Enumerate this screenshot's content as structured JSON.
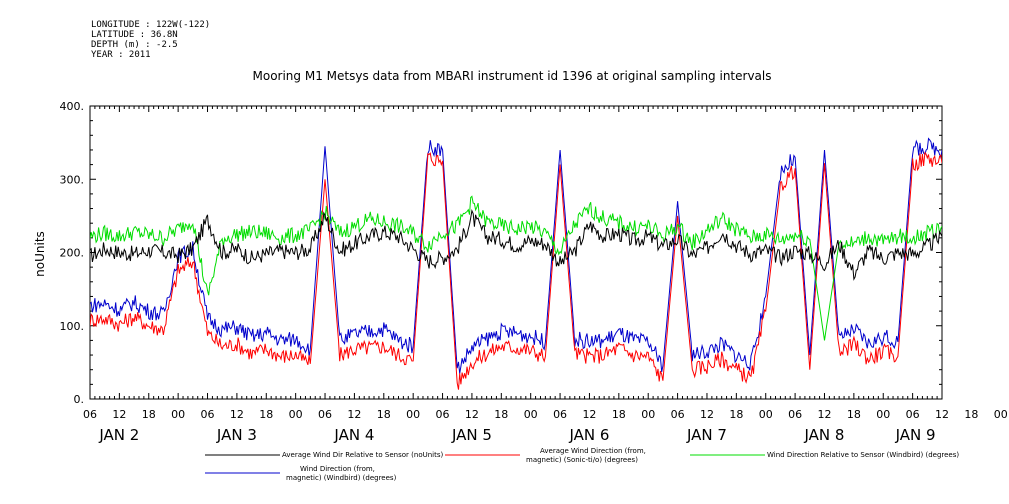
{
  "metadata": [
    "LONGITUDE : 122W(-122)",
    "LATITUDE : 36.8N",
    "DEPTH (m) : -2.5",
    "YEAR : 2011"
  ],
  "chart_data": {
    "type": "line",
    "title": "Mooring M1 Metsys data from MBARI instrument id 1396 at original sampling intervals",
    "ylabel": "noUnits",
    "ylim": [
      0,
      400
    ],
    "yticks": [
      "0.",
      "100.",
      "200.",
      "300.",
      "400."
    ],
    "ytick_values": [
      0,
      100,
      200,
      300,
      400
    ],
    "xlim_hours": [
      0,
      174
    ],
    "hour_ticks": [
      "06",
      "12",
      "18",
      "00",
      "06",
      "12",
      "18",
      "00",
      "06",
      "12",
      "18",
      "00",
      "06",
      "12",
      "18",
      "00",
      "06",
      "12",
      "18",
      "00",
      "06",
      "12",
      "18",
      "00",
      "06",
      "12",
      "18",
      "00",
      "06",
      "12",
      "18",
      "00",
      "06"
    ],
    "day_labels": [
      "JAN 2",
      "JAN 3",
      "JAN 4",
      "JAN 5",
      "JAN 6",
      "JAN 7",
      "JAN 8",
      "JAN 9"
    ],
    "series": [
      {
        "name": "Average Wind Dir Relative to Sensor (noUnits)",
        "color": "#000000",
        "x": [
          0,
          3,
          6,
          9,
          12,
          15,
          18,
          21,
          24,
          27,
          30,
          33,
          36,
          39,
          42,
          45,
          48,
          51,
          54,
          57,
          60,
          63,
          66,
          69,
          72,
          75,
          78,
          81,
          84,
          87,
          90,
          93,
          96,
          99,
          102,
          105,
          108,
          111,
          114,
          117,
          120,
          123,
          126,
          129,
          132,
          135,
          138,
          141,
          144,
          147,
          150,
          153,
          156,
          159,
          162,
          165,
          168,
          171,
          174
        ],
        "values": [
          195,
          205,
          200,
          198,
          203,
          200,
          196,
          205,
          245,
          200,
          205,
          192,
          198,
          202,
          200,
          205,
          250,
          202,
          212,
          222,
          228,
          222,
          205,
          188,
          193,
          205,
          248,
          222,
          218,
          210,
          216,
          212,
          185,
          202,
          238,
          222,
          226,
          216,
          222,
          208,
          218,
          196,
          206,
          228,
          210,
          198,
          203,
          193,
          203,
          198,
          185,
          212,
          172,
          202,
          192,
          200,
          198,
          208,
          222
        ]
      },
      {
        "name": "Average Wind Direction (from, magnetic) (Sonic-ti/o) (degrees)",
        "color": "#ff0000",
        "x": [
          0,
          3,
          6,
          9,
          12,
          15,
          18,
          21,
          24,
          27,
          30,
          33,
          36,
          39,
          42,
          45,
          48,
          51,
          54,
          57,
          60,
          63,
          66,
          69,
          72,
          75,
          78,
          81,
          84,
          87,
          90,
          93,
          96,
          99,
          102,
          105,
          108,
          111,
          114,
          117,
          120,
          123,
          126,
          129,
          132,
          135,
          138,
          141,
          144,
          147,
          150,
          153,
          156,
          159,
          162,
          165,
          168,
          171,
          174
        ],
        "values": [
          108,
          110,
          102,
          112,
          100,
          95,
          175,
          188,
          90,
          72,
          75,
          62,
          68,
          58,
          60,
          48,
          300,
          60,
          68,
          70,
          72,
          60,
          52,
          330,
          325,
          20,
          50,
          62,
          72,
          70,
          66,
          58,
          320,
          62,
          58,
          60,
          70,
          60,
          58,
          25,
          250,
          40,
          45,
          55,
          40,
          28,
          120,
          290,
          315,
          40,
          322,
          60,
          75,
          55,
          65,
          58,
          320,
          330,
          322
        ]
      },
      {
        "name": "Wind Direction Relative to Sensor (Windbird) (degrees)",
        "color": "#00dd00",
        "x": [
          0,
          3,
          6,
          9,
          12,
          15,
          18,
          21,
          24,
          27,
          30,
          33,
          36,
          39,
          42,
          45,
          48,
          51,
          54,
          57,
          60,
          63,
          66,
          69,
          72,
          75,
          78,
          81,
          84,
          87,
          90,
          93,
          96,
          99,
          102,
          105,
          108,
          111,
          114,
          117,
          120,
          123,
          126,
          129,
          132,
          135,
          138,
          141,
          144,
          147,
          150,
          153,
          156,
          159,
          162,
          165,
          168,
          171,
          174
        ],
        "values": [
          222,
          226,
          222,
          228,
          224,
          220,
          232,
          245,
          140,
          218,
          225,
          228,
          226,
          220,
          224,
          230,
          255,
          226,
          236,
          245,
          242,
          236,
          226,
          210,
          228,
          236,
          268,
          242,
          236,
          232,
          236,
          226,
          200,
          238,
          260,
          246,
          240,
          234,
          236,
          222,
          236,
          213,
          230,
          246,
          232,
          220,
          225,
          217,
          225,
          218,
          80,
          214,
          212,
          222,
          214,
          222,
          220,
          226,
          236
        ]
      },
      {
        "name": "Wind Direction (from, magnetic) (Windbird) (degrees)",
        "color": "#0000cc",
        "x": [
          0,
          3,
          6,
          9,
          12,
          15,
          18,
          21,
          24,
          27,
          30,
          33,
          36,
          39,
          42,
          45,
          48,
          51,
          54,
          57,
          60,
          63,
          66,
          69,
          72,
          75,
          78,
          81,
          84,
          87,
          90,
          93,
          96,
          99,
          102,
          105,
          108,
          111,
          114,
          117,
          120,
          123,
          126,
          129,
          132,
          135,
          138,
          141,
          144,
          147,
          150,
          153,
          156,
          159,
          162,
          165,
          168,
          171,
          174
        ],
        "values": [
          128,
          130,
          122,
          132,
          120,
          115,
          195,
          205,
          110,
          95,
          98,
          85,
          90,
          80,
          82,
          68,
          345,
          80,
          88,
          92,
          96,
          80,
          72,
          345,
          340,
          40,
          70,
          82,
          92,
          90,
          86,
          78,
          340,
          82,
          78,
          80,
          90,
          80,
          78,
          45,
          270,
          60,
          65,
          75,
          60,
          48,
          140,
          310,
          330,
          60,
          340,
          80,
          95,
          75,
          85,
          78,
          340,
          345,
          340
        ]
      }
    ],
    "legend_position": "bottom",
    "legend": [
      "Average Wind Dir Relative to Sensor (noUnits)",
      "Average Wind Direction (from,",
      "magnetic) (Sonic-ti/o) (degrees)",
      "Wind Direction Relative to Sensor (Windbird) (degrees)",
      "Wind Direction (from,",
      "magnetic) (Windbird) (degrees)"
    ]
  }
}
